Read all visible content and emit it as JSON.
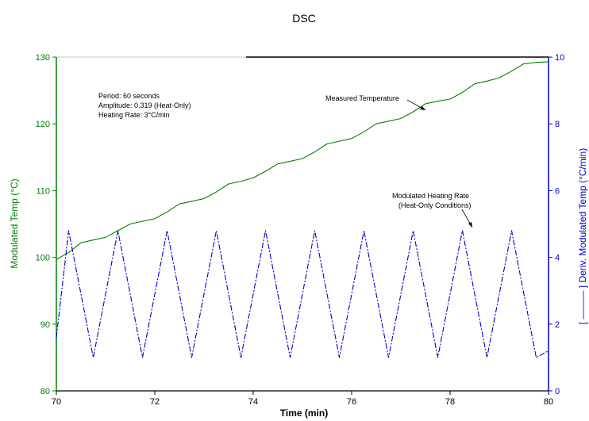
{
  "chart_data": {
    "type": "line",
    "title": "DSC",
    "xlabel": "Time (min)",
    "ylabel_left": "Modulated Temp (°C)",
    "ylabel_right": "[ ——— ] Deriv. Modulated Temp (°C/min)",
    "xlim": [
      70,
      80
    ],
    "ylim_left": [
      80,
      130
    ],
    "ylim_right": [
      0,
      10
    ],
    "x_ticks": [
      "70",
      "72",
      "74",
      "76",
      "78",
      "80"
    ],
    "y_ticks_left": [
      "80",
      "90",
      "100",
      "110",
      "120",
      "130"
    ],
    "y_ticks_right": [
      "0",
      "2",
      "4",
      "6",
      "8",
      "10"
    ],
    "grid": false,
    "annotations": {
      "params": [
        "Period: 60 seconds",
        "Amplitude: 0.319 (Heat-Only)",
        "Heating Rate: 3°C/min"
      ],
      "measured_temperature": "Measured Temperature",
      "modulated_rate": [
        "Modulated Heating Rate",
        "(Heat-Only Conditions)"
      ]
    },
    "series": [
      {
        "axis": "left",
        "color": "#008000",
        "style": "solid",
        "x": [
          70.0,
          70.25,
          70.5,
          70.75,
          71.0,
          71.25,
          71.5,
          71.75,
          72.0,
          72.25,
          72.5,
          72.75,
          73.0,
          73.25,
          73.5,
          73.75,
          74.0,
          74.25,
          74.5,
          74.75,
          75.0,
          75.25,
          75.5,
          75.75,
          76.0,
          76.25,
          76.5,
          76.75,
          77.0,
          77.25,
          77.5,
          77.75,
          78.0,
          78.25,
          78.5,
          78.75,
          79.0,
          79.25,
          79.5,
          79.75,
          80.0
        ],
        "values": [
          99.7,
          100.7,
          102.2,
          102.6,
          103.0,
          104.0,
          105.0,
          105.4,
          105.8,
          106.8,
          108.0,
          108.4,
          108.8,
          109.8,
          111.0,
          111.4,
          111.9,
          112.9,
          114.0,
          114.4,
          114.8,
          115.8,
          117.0,
          117.4,
          117.8,
          118.8,
          120.0,
          120.4,
          120.8,
          121.8,
          123.0,
          123.4,
          123.7,
          124.7,
          126.0,
          126.4,
          126.9,
          127.9,
          129.0,
          129.2,
          129.3
        ]
      },
      {
        "axis": "right",
        "color": "#0000c8",
        "style": "dash-dot",
        "x": [
          70.0,
          70.25,
          70.5,
          70.75,
          71.0,
          71.25,
          71.5,
          71.75,
          72.0,
          72.25,
          72.5,
          72.75,
          73.0,
          73.25,
          73.5,
          73.75,
          74.0,
          74.25,
          74.5,
          74.75,
          75.0,
          75.25,
          75.5,
          75.75,
          76.0,
          76.25,
          76.5,
          76.75,
          77.0,
          77.25,
          77.5,
          77.75,
          78.0,
          78.25,
          78.5,
          78.75,
          79.0,
          79.25,
          79.5,
          79.75,
          80.0
        ],
        "values": [
          1.6,
          4.8,
          2.9,
          1.0,
          2.9,
          4.8,
          2.9,
          1.0,
          2.9,
          4.8,
          2.9,
          1.0,
          2.9,
          4.8,
          2.9,
          1.0,
          2.9,
          4.8,
          2.9,
          1.0,
          2.9,
          4.8,
          2.9,
          1.0,
          2.9,
          4.8,
          2.9,
          1.0,
          2.9,
          4.8,
          2.9,
          1.0,
          2.9,
          4.8,
          2.9,
          1.0,
          2.9,
          4.8,
          2.9,
          1.0,
          1.2
        ]
      }
    ],
    "colors": {
      "left_axis": "#008000",
      "right_axis": "#0000c8",
      "frame": "#000000"
    }
  }
}
